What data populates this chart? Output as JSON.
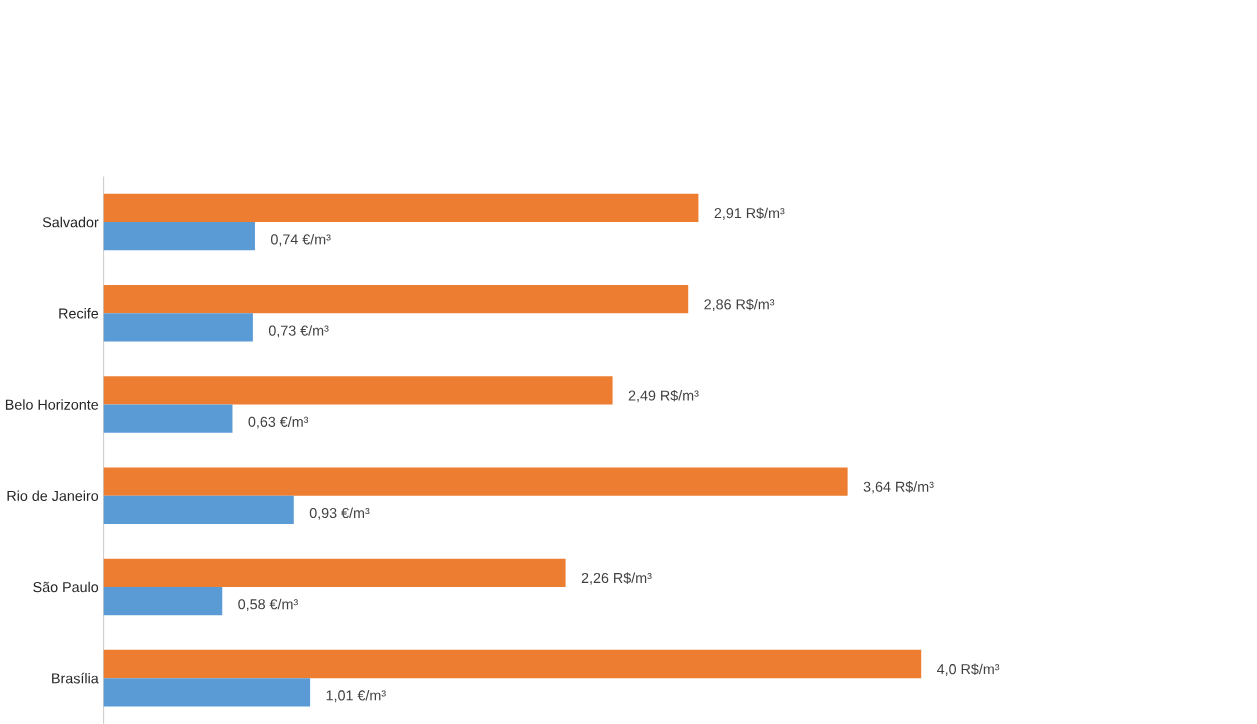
{
  "chart_data": {
    "type": "bar",
    "orientation": "horizontal",
    "categories": [
      "Salvador",
      "Recife",
      "Belo Horizonte",
      "Rio de Janeiro",
      "São Paulo",
      "Brasília"
    ],
    "series": [
      {
        "color": "#ed7d31",
        "values": [
          2.91,
          2.86,
          2.49,
          3.64,
          2.26,
          4.0
        ],
        "value_labels": [
          "2,91 R$/m³",
          "2,86 R$/m³",
          "2,49 R$/m³",
          "3,64 R$/m³",
          "2,26 R$/m³",
          "4,0 R$/m³"
        ]
      },
      {
        "color": "#5b9bd5",
        "values": [
          0.74,
          0.73,
          0.63,
          0.93,
          0.58,
          1.01
        ],
        "value_labels": [
          "0,74 €/m³",
          "0,73 €/m³",
          "0,63 €/m³",
          "0,93 €/m³",
          "0,58 €/m³",
          "1,01 €/m³"
        ]
      }
    ]
  }
}
